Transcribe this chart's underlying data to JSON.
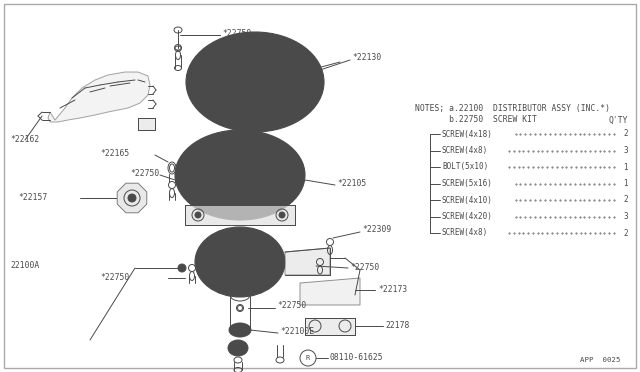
{
  "bg_color": "#ffffff",
  "line_color": "#4a4a4a",
  "text_color": "#4a4a4a",
  "page_ref": "APP  0025",
  "notes": [
    "NOTES; a.22100  DISTRIBUTOR ASSY (INC.*)",
    "       b.22750  SCREW KIT"
  ],
  "qty_header": "Q'TY",
  "bom_items": [
    {
      "name": "SCREW(4x18)",
      "qty": "2"
    },
    {
      "name": "SCREW(4x8)",
      "qty": "3"
    },
    {
      "name": "BOLT(5x10)",
      "qty": "1"
    },
    {
      "name": "SCREW(5x16)",
      "qty": "1"
    },
    {
      "name": "SCREW(4x10)",
      "qty": "2"
    },
    {
      "name": "SCREW(4x20)",
      "qty": "3"
    },
    {
      "name": "SCREW(4x8)",
      "qty": "2"
    }
  ]
}
